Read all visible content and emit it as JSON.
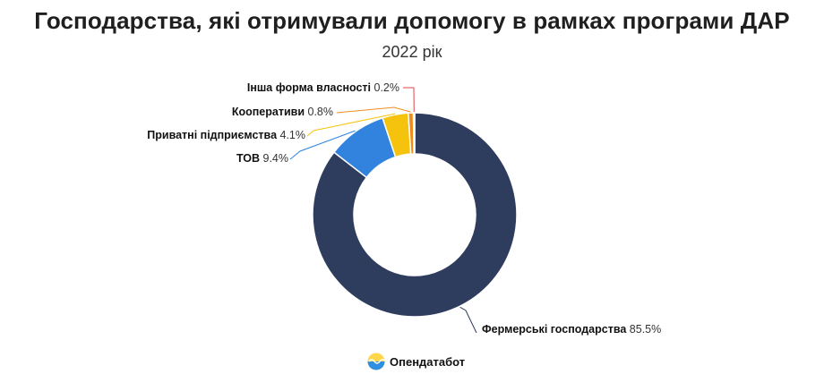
{
  "title": "Господарства, які отримували допомогу в рамках програми ДАР",
  "subtitle": "2022 рік",
  "brand": {
    "name": "Опендатабот",
    "logo_icon": "opendatabot-logo-icon"
  },
  "chart_data": {
    "type": "pie",
    "donut": true,
    "title": "Господарства, які отримували допомогу в рамках програми ДАР",
    "subtitle": "2022 рік",
    "series": [
      {
        "name": "Фермерські господарства",
        "value": 85.5,
        "label": "85.5%",
        "color": "#2e3c5d"
      },
      {
        "name": "ТОВ",
        "value": 9.4,
        "label": "9.4%",
        "color": "#3183de"
      },
      {
        "name": "Приватні підприємства",
        "value": 4.1,
        "label": "4.1%",
        "color": "#f5c30e"
      },
      {
        "name": "Кооперативи",
        "value": 0.8,
        "label": "0.8%",
        "color": "#f08c1e"
      },
      {
        "name": "Інша форма власності",
        "value": 0.2,
        "label": "0.2%",
        "color": "#e2444e"
      }
    ],
    "legend": "none"
  }
}
